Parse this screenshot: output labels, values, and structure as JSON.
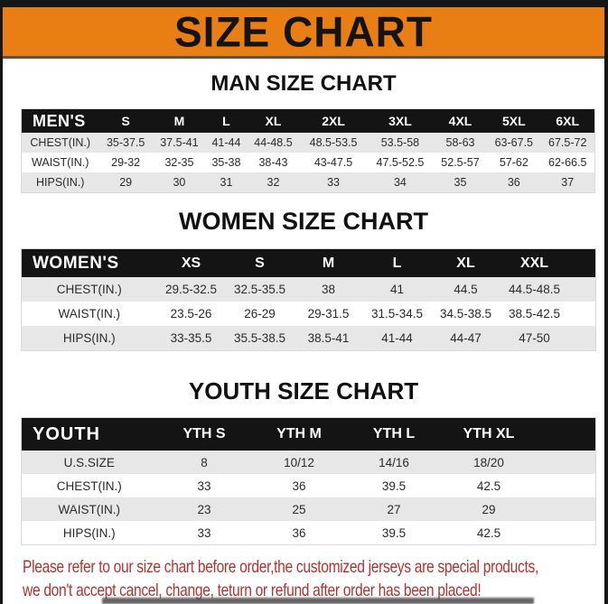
{
  "page": {
    "title": "SIZE CHART",
    "footer_line1": "Please refer to our size chart before order,the customized jerseys are special products,",
    "footer_line2": "we don't accept cancel, change, teturn or refund after order has been placed!"
  },
  "colors": {
    "banner_orange": "#E87E14",
    "table_header_black": "#141414",
    "row_stripe_gray": "#E7E7E7",
    "footer_red": "#B23330"
  },
  "sections": [
    {
      "title": "MAN SIZE CHART",
      "table": {
        "header": [
          "MEN'S",
          "S",
          "M",
          "L",
          "XL",
          "2XL",
          "3XL",
          "4XL",
          "5XL",
          "6XL"
        ],
        "rows": [
          [
            "CHEST(IN.)",
            "35-37.5",
            "37.5-41",
            "41-44",
            "44-48.5",
            "48.5-53.5",
            "53.5-58",
            "58-63",
            "63-67.5",
            "67.5-72"
          ],
          [
            "WAIST(IN.)",
            "29-32",
            "32-35",
            "35-38",
            "38-43",
            "43-47.5",
            "47.5-52.5",
            "52.5-57",
            "57-62",
            "62-66.5"
          ],
          [
            "HIPS(IN.)",
            "29",
            "30",
            "31",
            "32",
            "33",
            "34",
            "35",
            "36",
            "37"
          ]
        ]
      }
    },
    {
      "title": "WOMEN SIZE CHART",
      "table": {
        "header": [
          "WOMEN'S",
          "XS",
          "S",
          "M",
          "L",
          "XL",
          "XXL",
          ""
        ],
        "rows": [
          [
            "CHEST(IN.)",
            "29.5-32.5",
            "32.5-35.5",
            "38",
            "41",
            "44.5",
            "44.5-48.5",
            ""
          ],
          [
            "WAIST(IN.)",
            "23.5-26",
            "26-29",
            "29-31.5",
            "31.5-34.5",
            "34.5-38.5",
            "38.5-42.5",
            ""
          ],
          [
            "HIPS(IN.)",
            "33-35.5",
            "35.5-38.5",
            "38.5-41",
            "41-44",
            "44-47",
            "47-50",
            ""
          ]
        ]
      }
    },
    {
      "title": "YOUTH SIZE CHART",
      "table": {
        "header": [
          "YOUTH",
          "YTH S",
          "YTH M",
          "YTH L",
          "YTH XL",
          ""
        ],
        "rows": [
          [
            "U.S.SIZE",
            "8",
            "10/12",
            "14/16",
            "18/20",
            ""
          ],
          [
            "CHEST(IN.)",
            "33",
            "36",
            "39.5",
            "42.5",
            ""
          ],
          [
            "WAIST(IN.)",
            "23",
            "25",
            "27",
            "29",
            ""
          ],
          [
            "HIPS(IN.)",
            "33",
            "36",
            "39.5",
            "42.5",
            ""
          ]
        ]
      }
    }
  ]
}
